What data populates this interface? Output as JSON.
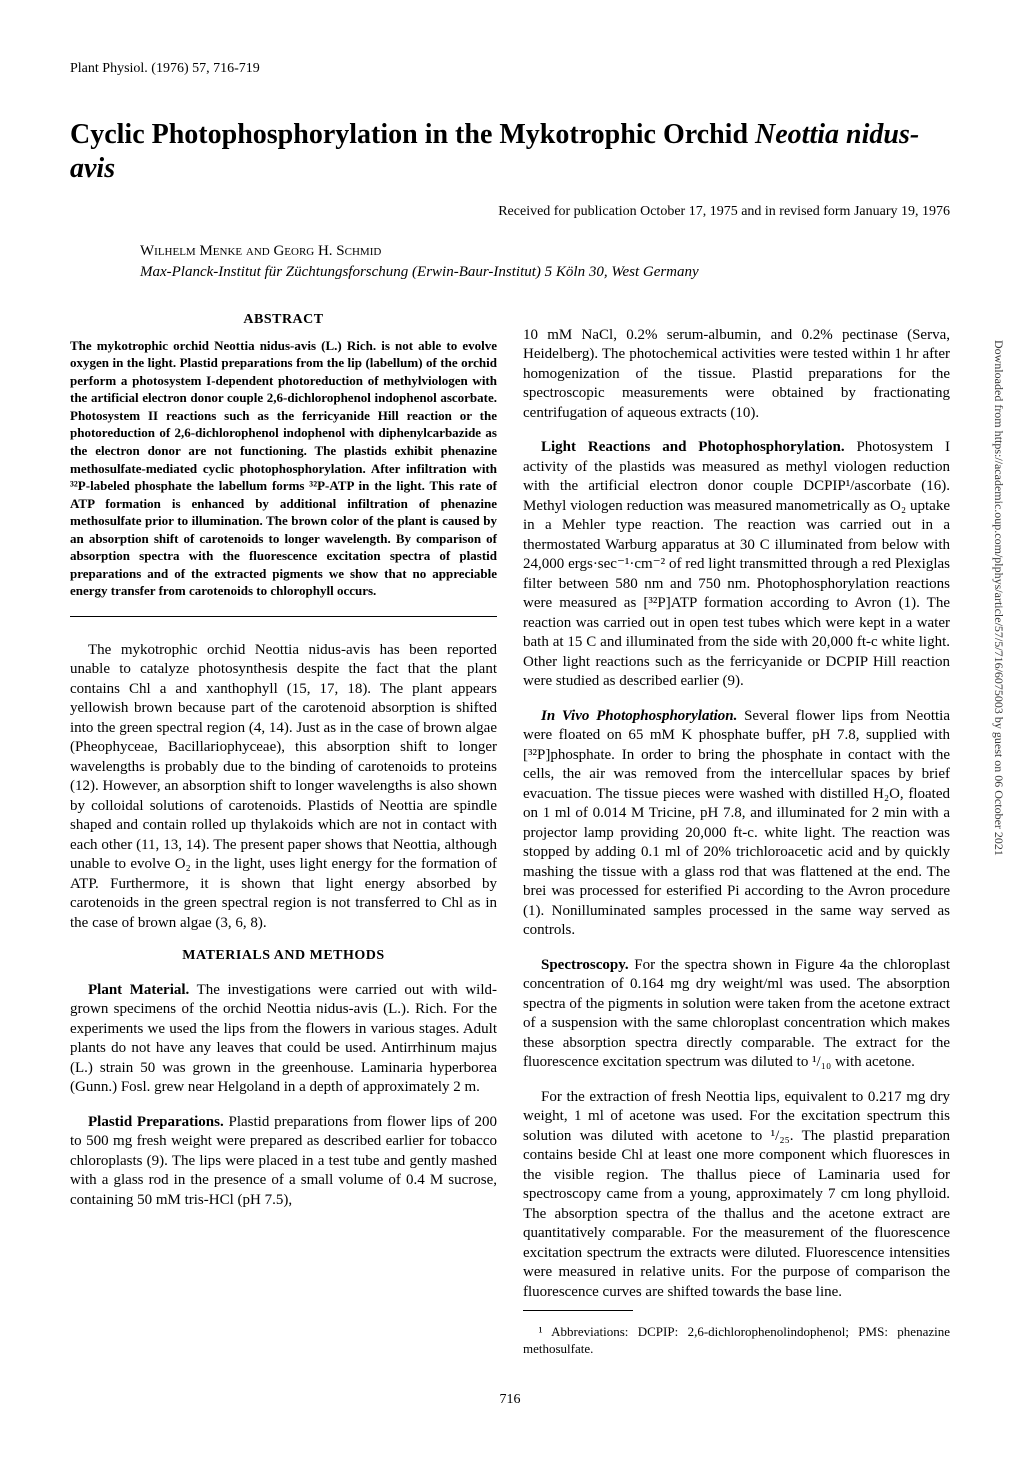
{
  "journal_header": "Plant Physiol. (1976) 57, 716-719",
  "title_part1": "Cyclic Photophosphorylation in the Mykotrophic Orchid ",
  "title_italic": "Neottia nidus-avis",
  "received": "Received for publication October 17, 1975 and in revised form January 19, 1976",
  "authors": "Wilhelm Menke and Georg H. Schmid",
  "affiliation": "Max-Planck-Institut für Züchtungsforschung (Erwin-Baur-Institut) 5 Köln 30, West Germany",
  "abstract_heading": "ABSTRACT",
  "abstract_body": "The mykotrophic orchid Neottia nidus-avis (L.) Rich. is not able to evolve oxygen in the light. Plastid preparations from the lip (labellum) of the orchid perform a photosystem I-dependent photoreduction of methylviologen with the artificial electron donor couple 2,6-dichlorophenol indophenol ascorbate. Photosystem II reactions such as the ferricyanide Hill reaction or the photoreduction of 2,6-dichlorophenol indophenol with diphenylcarbazide as the electron donor are not functioning. The plastids exhibit phenazine methosulfate-mediated cyclic photophosphorylation. After infiltration with ³²P-labeled phosphate the labellum forms ³²P-ATP in the light. This rate of ATP formation is enhanced by additional infiltration of phenazine methosulfate prior to illumination. The brown color of the plant is caused by an absorption shift of carotenoids to longer wavelength. By comparison of absorption spectra with the fluorescence excitation spectra of plastid preparations and of the extracted pigments we show that no appreciable energy transfer from carotenoids to chlorophyll occurs.",
  "intro_para": "The mykotrophic orchid Neottia nidus-avis has been reported unable to catalyze photosynthesis despite the fact that the plant contains Chl a and xanthophyll (15, 17, 18). The plant appears yellowish brown because part of the carotenoid absorption is shifted into the green spectral region (4, 14). Just as in the case of brown algae (Pheophyceae, Bacillariophyceae), this absorption shift to longer wavelengths is probably due to the binding of carotenoids to proteins (12). However, an absorption shift to longer wavelengths is also shown by colloidal solutions of carotenoids. Plastids of Neottia are spindle shaped and contain rolled up thylakoids which are not in contact with each other (11, 13, 14). The present paper shows that Neottia, although unable to evolve O₂ in the light, uses light energy for the formation of ATP. Furthermore, it is shown that light energy absorbed by carotenoids in the green spectral region is not transferred to Chl as in the case of brown algae (3, 6, 8).",
  "materials_heading": "MATERIALS AND METHODS",
  "plant_material_runin": "Plant Material.",
  "plant_material_text": " The investigations were carried out with wild-grown specimens of the orchid Neottia nidus-avis (L.). Rich. For the experiments we used the lips from the flowers in various stages. Adult plants do not have any leaves that could be used. Antirrhinum majus (L.) strain 50 was grown in the greenhouse. Laminaria hyperborea (Gunn.) Fosl. grew near Helgoland in a depth of approximately 2 m.",
  "plastid_prep_runin": "Plastid Preparations.",
  "plastid_prep_text": " Plastid preparations from flower lips of 200 to 500 mg fresh weight were prepared as described earlier for tobacco chloroplasts (9). The lips were placed in a test tube and gently mashed with a glass rod in the presence of a small volume of 0.4 M sucrose, containing 50 mM tris-HCl (pH 7.5), ",
  "col2_top": "10 mM NaCl, 0.2% serum-albumin, and 0.2% pectinase (Serva, Heidelberg). The photochemical activities were tested within 1 hr after homogenization of the tissue. Plastid preparations for the spectroscopic measurements were obtained by fractionating centrifugation of aqueous extracts (10).",
  "light_reactions_runin": "Light Reactions and Photophosphorylation.",
  "light_reactions_text": " Photosystem I activity of the plastids was measured as methyl viologen reduction with the artificial electron donor couple DCPIP¹/ascorbate (16). Methyl viologen reduction was measured manometrically as O₂ uptake in a Mehler type reaction. The reaction was carried out in a thermostated Warburg apparatus at 30 C illuminated from below with 24,000 ergs·sec⁻¹·cm⁻² of red light transmitted through a red Plexiglas filter between 580 nm and 750 nm. Photophosphorylation reactions were measured as [³²P]ATP formation according to Avron (1). The reaction was carried out in open test tubes which were kept in a water bath at 15 C and illuminated from the side with 20,000 ft-c white light. Other light reactions such as the ferricyanide or DCPIP Hill reaction were studied as described earlier (9).",
  "invivo_runin": "In Vivo Photophosphorylation.",
  "invivo_text": " Several flower lips from Neottia were floated on 65 mM K phosphate buffer, pH 7.8, supplied with [³²P]phosphate. In order to bring the phosphate in contact with the cells, the air was removed from the intercellular spaces by brief evacuation. The tissue pieces were washed with distilled H₂O, floated on 1 ml of 0.014 M Tricine, pH 7.8, and illuminated for 2 min with a projector lamp providing 20,000 ft-c. white light. The reaction was stopped by adding 0.1 ml of 20% trichloroacetic acid and by quickly mashing the tissue with a glass rod that was flattened at the end. The brei was processed for esterified Pi according to the Avron procedure (1). Nonilluminated samples processed in the same way served as controls.",
  "spectroscopy_runin": "Spectroscopy.",
  "spectroscopy_text": " For the spectra shown in Figure 4a the chloroplast concentration of 0.164 mg dry weight/ml was used. The absorption spectra of the pigments in solution were taken from the acetone extract of a suspension with the same chloroplast concentration which makes these absorption spectra directly comparable. The extract for the fluorescence excitation spectrum was diluted to ¹/₁₀ with acetone.",
  "spectroscopy_para2": "For the extraction of fresh Neottia lips, equivalent to 0.217 mg dry weight, 1 ml of acetone was used. For the excitation spectrum this solution was diluted with acetone to ¹/₂₅. The plastid preparation contains beside Chl at least one more component which fluoresces in the visible region. The thallus piece of Laminaria used for spectroscopy came from a young, approximately 7 cm long phylloid. The absorption spectra of the thallus and the acetone extract are quantitatively comparable. For the measurement of the fluorescence excitation spectrum the extracts were diluted. Fluorescence intensities were measured in relative units. For the purpose of comparison the fluorescence curves are shifted towards the base line.",
  "footnote": "¹ Abbreviations: DCPIP: 2,6-dichlorophenolindophenol; PMS: phenazine methosulfate.",
  "page_number": "716",
  "side_note": "Downloaded from https://academic.oup.com/plphys/article/57/5/716/6075003 by guest on 06 October 2021"
}
